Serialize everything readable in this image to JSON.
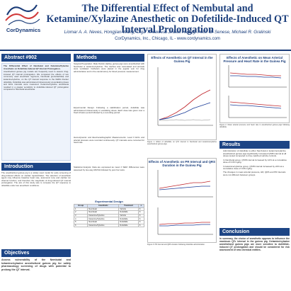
{
  "header": {
    "logo_text": "CorDynamics",
    "title": "The Differential Effect of Nembutal and Ketamine/Xylazine Anesthetic on Dofetilide-Induced QT Interval Prolongation",
    "authors": "Liomar A. A. Neves, Hongjian Wang, Olga Tiniakova, Jinbao Huang, Peter B. Senese, Michael R. Gralinski",
    "affiliation": "CorDynamics, Inc., Chicago, IL - www.cordynamics.com"
  },
  "abstract": {
    "heading": "Abstract #902",
    "subtitle": "The Differential Effect of Nembutal and Ketamine/Xylazine Anesthetic on Dofetilide-Induced QT Interval Prolongation.",
    "body": "Anesthetized guinea pig models are frequently used to assess drug-induced QT interval prolongation. We compared the effects of two commonly used anesthetic regimens, Nembutal (pentobarbital) and ketamine/xylazine, on the QT interval response to the hERG blocker dofetilide. Dofetilide was administered intravenously at escalating doses and ECG intervals were measured. Ketamine/xylazine anesthesia resulted in a greater sensitivity to dofetilide-induced QT prolongation compared to Nembutal anesthesia."
  },
  "introduction": {
    "heading": "Introduction",
    "body": "The anesthetized guinea pig is a widely used model for early screening of drug-induced effects on cardiac repolarization. The selection of anesthetic agent may influence baseline heart rate, autonomic tone and cardiac ion channel function, and therefore the magnitude of drug-induced QT interval prolongation. The aim of this study was to compare the QT response to dofetilide under two anesthetic conditions."
  },
  "objectives": {
    "heading": "Objectives",
    "body": "Assess vulnerability of the Nembutal and ketamine/xylazine anesthetized guinea pig for safety pharmacology screening of drugs with potential to prolong the QT interval."
  },
  "methods": {
    "heading": "Methods",
    "body1": "Surgical Preparation: Male Dunkin Hartley guinea pigs were anesthetized with Nembutal or ketamine/xylazine. The trachea was cannulated and animals were ventilated. Catheters were placed in the jugular vein for drug administration and in the carotid artery for blood pressure measurement.",
    "body2": "Experimental Design: Following a stabilization period, dofetilide was administered intravenously in escalating doses. Each dose was given over a fixed infusion period followed by a recording period.",
    "body3": "Hemodynamic and Electrocardiographic Measurements: Lead II ECG and arterial pressure were recorded continuously. QT intervals were corrected for heart rate.",
    "body4": "Statistical Analysis: Data are expressed as mean ± SEM. Differences were assessed by two-way ANOVA followed by post hoc tests.",
    "table_title": "Experimental Design",
    "table_headers": [
      "Group",
      "Anesthetic",
      "Treatment",
      "n"
    ],
    "table_rows": [
      [
        "1",
        "Nembutal",
        "Vehicle",
        "6"
      ],
      [
        "2",
        "Nembutal",
        "Dofetilide",
        "6"
      ],
      [
        "3",
        "Ketamine/Xylazine",
        "Vehicle",
        "6"
      ],
      [
        "4",
        "Ketamine/Xylazine",
        "Dofetilide",
        "6"
      ],
      [
        "5",
        "Nembutal",
        "Dofetilide",
        "6"
      ],
      [
        "6",
        "Ketamine/Xylazine",
        "Dofetilide",
        "6"
      ]
    ]
  },
  "figures": {
    "fig1_title": "Effects of Anesthetic on QT Interval in the Guinea Pig",
    "fig1_caption": "Figure 1. Effect of dofetilide on QTc interval in Nembutal and ketamine/xylazine anesthetized guinea pigs.",
    "fig2_title": "Effects of Anesthetic on Mean Arterial Pressure and Heart Rate in the Guinea Pig",
    "fig2_caption": "Figure 2. Mean arterial pressure and heart rate in anesthetized guinea pigs following dofetilide.",
    "fig3_title": "Effects of Anesthetic on PR Interval and QRS Duration in the Guinea Pig",
    "fig3_caption": "Figure 3. PR interval and QRS duration following dofetilide administration."
  },
  "results": {
    "heading": "Results",
    "bullets": [
      "Administration of dofetilide to either Nembutal or ketamine/xylazine anesthetized guinea pigs significantly increased QTcB interval at all doses tested compared to time-matched vehicle controls.",
      "In Nembutal group, QTcB interval increased by 12% at a cumulative dose of 0.06 mg/kg.",
      "In ketamine/xylazine group, QTcB interval increased by 24% at a cumulative dose of 0.06 mg/kg.",
      "The changes in mean arterial pressure, HR, QRS and PR intervals were not different between groups."
    ]
  },
  "conclusion": {
    "heading": "Conclusion",
    "body": "In summary, the choice of anesthetic appears to influence the maximum QTc interval in the guinea pig. Ketamine/xylazine anesthetized guinea pigs are more sensitive to dofetilide-induced QT prolongation and should be considered for risk assessment of new chemical entities."
  },
  "colors": {
    "brand": "#1d4585",
    "nembutal": "#1f3f99",
    "ketamine": "#c0272d"
  }
}
